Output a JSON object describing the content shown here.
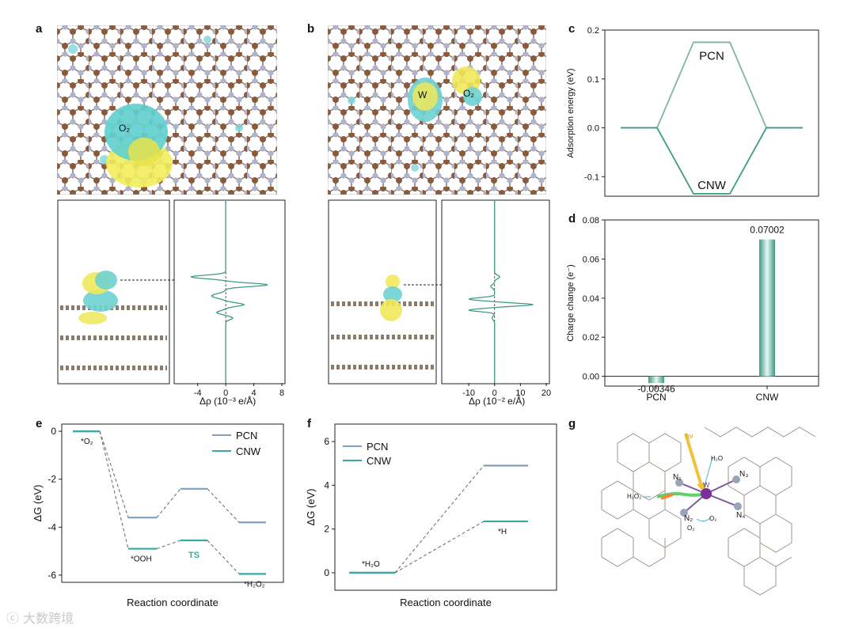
{
  "panels": {
    "a": {
      "letter": "a",
      "top_labels": {
        "o2": "O₂"
      },
      "profile": {
        "xlabel": "Δρ (10⁻³ e/Å)",
        "xticks": [
          -4,
          0,
          4,
          8
        ]
      }
    },
    "b": {
      "letter": "b",
      "top_labels": {
        "w": "W",
        "o2": "O₂"
      },
      "profile": {
        "xlabel": "Δρ (10⁻² e/Å)",
        "xticks": [
          -10,
          0,
          10,
          20
        ]
      }
    },
    "c": {
      "letter": "c"
    },
    "d": {
      "letter": "d"
    },
    "e": {
      "letter": "e"
    },
    "f": {
      "letter": "f"
    },
    "g": {
      "letter": "g",
      "labels": {
        "hv": "hν",
        "h2o": "H₂O",
        "h2o2": "H₂O₂",
        "o2a": "O₂",
        "o2b": "O₂",
        "w": "W",
        "n1": "N₁",
        "n2": "N₂",
        "n3": "N₃",
        "n4": "N₄"
      }
    }
  },
  "chart_data": [
    {
      "id": "c",
      "type": "line",
      "ylabel": "Adsorption energy (eV)",
      "ylim": [
        -0.14,
        0.2
      ],
      "yticks": [
        -0.1,
        0.0,
        0.1,
        0.2
      ],
      "series": [
        {
          "name": "PCN",
          "points": [
            [
              0,
              0
            ],
            [
              1,
              0
            ],
            [
              2,
              0.175
            ],
            [
              3,
              0.175
            ],
            [
              4,
              0
            ],
            [
              5,
              0
            ]
          ]
        },
        {
          "name": "CNW",
          "points": [
            [
              0,
              0
            ],
            [
              1,
              0
            ],
            [
              2,
              -0.135
            ],
            [
              3,
              -0.135
            ],
            [
              4,
              0
            ],
            [
              5,
              0
            ]
          ]
        }
      ],
      "annotations": [
        "PCN",
        "CNW"
      ],
      "colors": {
        "PCN": "#7fb3ab",
        "CNW": "#3d9a86"
      }
    },
    {
      "id": "d",
      "type": "bar",
      "ylabel": "Charge change (e⁻)",
      "ylim": [
        -0.005,
        0.08
      ],
      "yticks": [
        "0.00",
        "0.02",
        "0.04",
        "0.06",
        "0.08"
      ],
      "categories": [
        "PCN",
        "CNW"
      ],
      "values": [
        -0.00346,
        0.07002
      ],
      "value_labels": [
        "-0.00346",
        "0.07002"
      ],
      "bar_color": "#3d9a86"
    },
    {
      "id": "e",
      "type": "line",
      "xlabel": "Reaction coordinate",
      "ylabel": "ΔG (eV)",
      "ylim": [
        -6.3,
        0.3
      ],
      "yticks": [
        0,
        -2,
        -4,
        -6
      ],
      "legend": [
        "PCN",
        "CNW"
      ],
      "legend_position": "top-right",
      "series": [
        {
          "name": "PCN",
          "levels": [
            0,
            -3.6,
            -2.4,
            -3.8
          ]
        },
        {
          "name": "CNW",
          "levels": [
            0,
            -4.9,
            -4.55,
            -5.95
          ]
        }
      ],
      "annotations": [
        "*O₂",
        "*OOH",
        "TS",
        "*H₂O₂"
      ],
      "colors": {
        "PCN": "#7f9fc0",
        "CNW": "#3aa7a0"
      }
    },
    {
      "id": "f",
      "type": "line",
      "xlabel": "Reaction coordinate",
      "ylabel": "ΔG (eV)",
      "ylim": [
        -0.8,
        6.8
      ],
      "yticks": [
        0,
        2,
        4,
        6
      ],
      "legend": [
        "PCN",
        "CNW"
      ],
      "legend_position": "top-left",
      "series": [
        {
          "name": "PCN",
          "levels": [
            0,
            4.9
          ]
        },
        {
          "name": "CNW",
          "levels": [
            0,
            2.35
          ]
        }
      ],
      "annotations": [
        "*H₂O",
        "*H"
      ],
      "colors": {
        "PCN": "#7f9fc0",
        "CNW": "#3aa7a0"
      }
    }
  ],
  "watermark": {
    "text": "大数跨境"
  }
}
